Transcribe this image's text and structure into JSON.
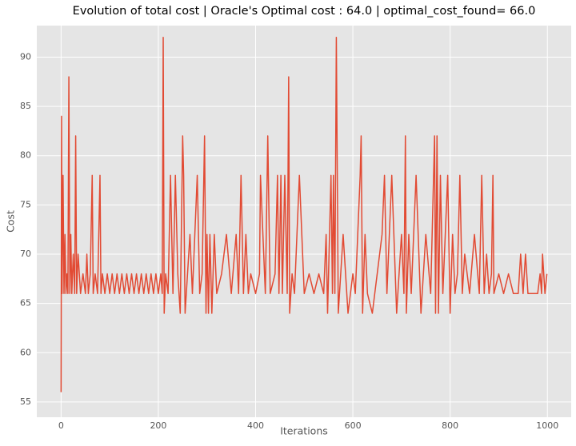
{
  "chart_data": {
    "type": "line",
    "title": "Evolution of total cost | Oracle's Optimal cost : 64.0 | optimal_cost_found= 66.0",
    "x_label": "Iterations",
    "y_label": "Cost",
    "x": [
      0,
      1,
      2,
      4,
      6,
      8,
      10,
      12,
      14,
      16,
      18,
      20,
      22,
      25,
      28,
      30,
      32,
      35,
      40,
      45,
      50,
      53,
      56,
      60,
      64,
      66,
      70,
      75,
      80,
      82,
      85,
      90,
      95,
      100,
      105,
      110,
      115,
      120,
      125,
      130,
      135,
      140,
      145,
      150,
      155,
      160,
      165,
      170,
      175,
      180,
      185,
      190,
      195,
      200,
      205,
      208,
      210,
      212,
      215,
      220,
      225,
      230,
      235,
      240,
      245,
      250,
      252,
      255,
      260,
      265,
      270,
      275,
      280,
      285,
      290,
      295,
      298,
      300,
      303,
      306,
      310,
      315,
      320,
      330,
      340,
      350,
      360,
      365,
      370,
      375,
      380,
      385,
      390,
      400,
      408,
      410,
      420,
      425,
      430,
      440,
      445,
      448,
      452,
      455,
      460,
      465,
      468,
      470,
      475,
      480,
      490,
      500,
      510,
      520,
      530,
      540,
      545,
      548,
      552,
      555,
      558,
      560,
      563,
      566,
      570,
      575,
      580,
      590,
      600,
      605,
      610,
      615,
      617,
      620,
      625,
      630,
      640,
      650,
      660,
      665,
      670,
      675,
      680,
      690,
      700,
      705,
      708,
      710,
      715,
      720,
      725,
      730,
      740,
      750,
      760,
      768,
      770,
      773,
      776,
      780,
      785,
      790,
      795,
      800,
      805,
      810,
      815,
      820,
      825,
      830,
      840,
      850,
      860,
      865,
      870,
      875,
      880,
      885,
      888,
      890,
      900,
      910,
      920,
      930,
      940,
      945,
      950,
      955,
      960,
      970,
      980,
      985,
      988,
      990,
      995,
      999
    ],
    "series": [
      {
        "color": "#e24a33",
        "values": [
          56,
          84,
          66,
          78,
          66,
          72,
          66,
          68,
          66,
          88,
          66,
          72,
          66,
          70,
          66,
          82,
          66,
          70,
          66,
          68,
          66,
          70,
          66,
          68,
          78,
          66,
          68,
          66,
          78,
          66,
          68,
          66,
          68,
          66,
          68,
          66,
          68,
          66,
          68,
          66,
          68,
          66,
          68,
          66,
          68,
          66,
          68,
          66,
          68,
          66,
          68,
          66,
          68,
          66,
          68,
          66,
          92,
          64,
          68,
          66,
          78,
          66,
          78,
          68,
          64,
          82,
          78,
          64,
          68,
          72,
          66,
          72,
          78,
          66,
          68,
          82,
          64,
          72,
          64,
          72,
          64,
          72,
          66,
          68,
          72,
          66,
          72,
          66,
          78,
          66,
          72,
          66,
          68,
          66,
          68,
          78,
          66,
          82,
          66,
          68,
          78,
          66,
          78,
          66,
          78,
          66,
          88,
          64,
          68,
          66,
          78,
          66,
          68,
          66,
          68,
          66,
          72,
          64,
          72,
          78,
          66,
          78,
          66,
          92,
          64,
          68,
          72,
          64,
          68,
          66,
          72,
          78,
          82,
          64,
          72,
          66,
          64,
          68,
          72,
          78,
          66,
          72,
          78,
          64,
          72,
          66,
          82,
          64,
          72,
          66,
          72,
          78,
          64,
          72,
          66,
          82,
          64,
          82,
          64,
          78,
          66,
          72,
          78,
          64,
          72,
          66,
          68,
          78,
          66,
          70,
          66,
          72,
          66,
          78,
          66,
          70,
          66,
          68,
          78,
          66,
          68,
          66,
          68,
          66,
          66,
          70,
          66,
          70,
          66,
          66,
          66,
          68,
          66,
          70,
          66,
          68
        ]
      }
    ],
    "xlim": [
      -49.95,
      1048.95
    ],
    "ylim": [
      53.45,
      93.2
    ],
    "xticks": [
      0,
      200,
      400,
      600,
      800,
      1000
    ],
    "yticks": [
      55,
      60,
      65,
      70,
      75,
      80,
      85,
      90
    ],
    "grid": true
  }
}
